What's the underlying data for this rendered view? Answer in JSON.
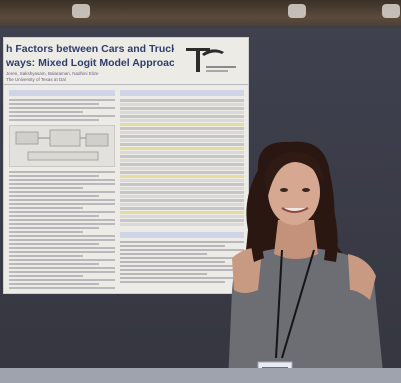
{
  "poster": {
    "title_line1": "h Factors between Cars and Trucks on",
    "title_line2": "ways: Mixed Logit Model Approach",
    "authors": "Jeren, Sakshyasam, Balaraman, Nadhini Elize",
    "affiliation": "The University of Texas at Dal"
  }
}
